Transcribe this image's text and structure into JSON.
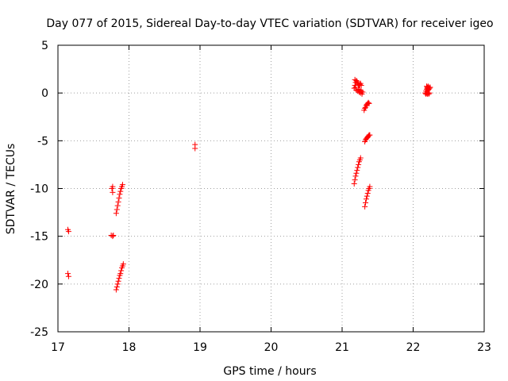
{
  "chart_data": {
    "type": "scatter",
    "title": "Day 077 of 2015, Sidereal Day-to-day VTEC variation (SDTVAR) for receiver igeo",
    "xlabel": "GPS time / hours",
    "ylabel": "SDTVAR / TECUs",
    "xlim": [
      17,
      23
    ],
    "ylim": [
      -25,
      5
    ],
    "xticks": [
      17,
      18,
      19,
      20,
      21,
      22,
      23
    ],
    "yticks": [
      5,
      0,
      -5,
      -10,
      -15,
      -20,
      -25
    ],
    "xtick_labels": [
      "17",
      "18",
      "19",
      "20",
      "21",
      "22",
      "23"
    ],
    "ytick_labels": [
      "5",
      "0",
      "-5",
      "-10",
      "-15",
      "-20",
      "-25"
    ],
    "grid": true,
    "marker": "+",
    "color": "#ff0000",
    "points": [
      [
        17.14,
        -14.3
      ],
      [
        17.15,
        -14.5
      ],
      [
        17.14,
        -18.9
      ],
      [
        17.15,
        -19.2
      ],
      [
        17.76,
        -10.0
      ],
      [
        17.77,
        -10.4
      ],
      [
        17.77,
        -9.8
      ],
      [
        17.75,
        -14.9
      ],
      [
        17.77,
        -15.0
      ],
      [
        17.78,
        -14.9
      ],
      [
        17.82,
        -12.6
      ],
      [
        17.83,
        -12.2
      ],
      [
        17.84,
        -11.8
      ],
      [
        17.85,
        -11.4
      ],
      [
        17.86,
        -11.0
      ],
      [
        17.87,
        -10.6
      ],
      [
        17.88,
        -10.3
      ],
      [
        17.89,
        -10.0
      ],
      [
        17.9,
        -9.8
      ],
      [
        17.91,
        -9.6
      ],
      [
        17.82,
        -20.6
      ],
      [
        17.83,
        -20.3
      ],
      [
        17.84,
        -20.0
      ],
      [
        17.85,
        -19.7
      ],
      [
        17.86,
        -19.4
      ],
      [
        17.87,
        -19.1
      ],
      [
        17.88,
        -18.9
      ],
      [
        17.89,
        -18.6
      ],
      [
        17.9,
        -18.3
      ],
      [
        17.91,
        -18.1
      ],
      [
        17.92,
        -17.9
      ],
      [
        18.93,
        -5.4
      ],
      [
        18.93,
        -5.8
      ],
      [
        21.17,
        -9.5
      ],
      [
        21.18,
        -9.1
      ],
      [
        21.19,
        -8.7
      ],
      [
        21.2,
        -8.4
      ],
      [
        21.21,
        -8.1
      ],
      [
        21.22,
        -7.8
      ],
      [
        21.23,
        -7.5
      ],
      [
        21.24,
        -7.2
      ],
      [
        21.25,
        -7.0
      ],
      [
        21.26,
        -6.8
      ],
      [
        21.17,
        0.5
      ],
      [
        21.18,
        0.8
      ],
      [
        21.19,
        1.1
      ],
      [
        21.2,
        1.3
      ],
      [
        21.21,
        1.2
      ],
      [
        21.22,
        1.0
      ],
      [
        21.23,
        0.9
      ],
      [
        21.24,
        0.8
      ],
      [
        21.25,
        0.9
      ],
      [
        21.26,
        1.0
      ],
      [
        21.27,
        0.8
      ],
      [
        21.2,
        0.3
      ],
      [
        21.22,
        0.2
      ],
      [
        21.24,
        0.1
      ],
      [
        21.26,
        0.0
      ],
      [
        21.28,
        -0.1
      ],
      [
        21.29,
        0.1
      ],
      [
        21.18,
        1.4
      ],
      [
        21.19,
        0.6
      ],
      [
        21.23,
        0.4
      ],
      [
        21.25,
        0.3
      ],
      [
        21.27,
        0.2
      ],
      [
        21.31,
        -1.8
      ],
      [
        21.32,
        -1.6
      ],
      [
        21.33,
        -1.5
      ],
      [
        21.34,
        -1.3
      ],
      [
        21.35,
        -1.2
      ],
      [
        21.36,
        -1.1
      ],
      [
        21.37,
        -1.0
      ],
      [
        21.38,
        -1.1
      ],
      [
        21.32,
        -5.1
      ],
      [
        21.33,
        -4.9
      ],
      [
        21.34,
        -4.8
      ],
      [
        21.35,
        -4.7
      ],
      [
        21.36,
        -4.6
      ],
      [
        21.37,
        -4.5
      ],
      [
        21.38,
        -4.4
      ],
      [
        21.39,
        -4.4
      ],
      [
        21.32,
        -11.9
      ],
      [
        21.33,
        -11.5
      ],
      [
        21.34,
        -11.1
      ],
      [
        21.35,
        -10.8
      ],
      [
        21.36,
        -10.5
      ],
      [
        21.37,
        -10.2
      ],
      [
        21.38,
        -10.0
      ],
      [
        21.39,
        -9.8
      ],
      [
        22.17,
        0.0
      ],
      [
        22.18,
        0.2
      ],
      [
        22.19,
        0.4
      ],
      [
        22.2,
        0.6
      ],
      [
        22.21,
        0.7
      ],
      [
        22.22,
        0.6
      ],
      [
        22.23,
        0.5
      ],
      [
        22.24,
        0.6
      ],
      [
        22.18,
        -0.1
      ],
      [
        22.19,
        0.0
      ],
      [
        22.2,
        -0.1
      ],
      [
        22.21,
        0.0
      ],
      [
        22.22,
        -0.1
      ],
      [
        22.23,
        0.0
      ],
      [
        22.19,
        0.7
      ],
      [
        22.2,
        0.5
      ],
      [
        22.21,
        0.3
      ],
      [
        22.22,
        0.4
      ]
    ]
  }
}
